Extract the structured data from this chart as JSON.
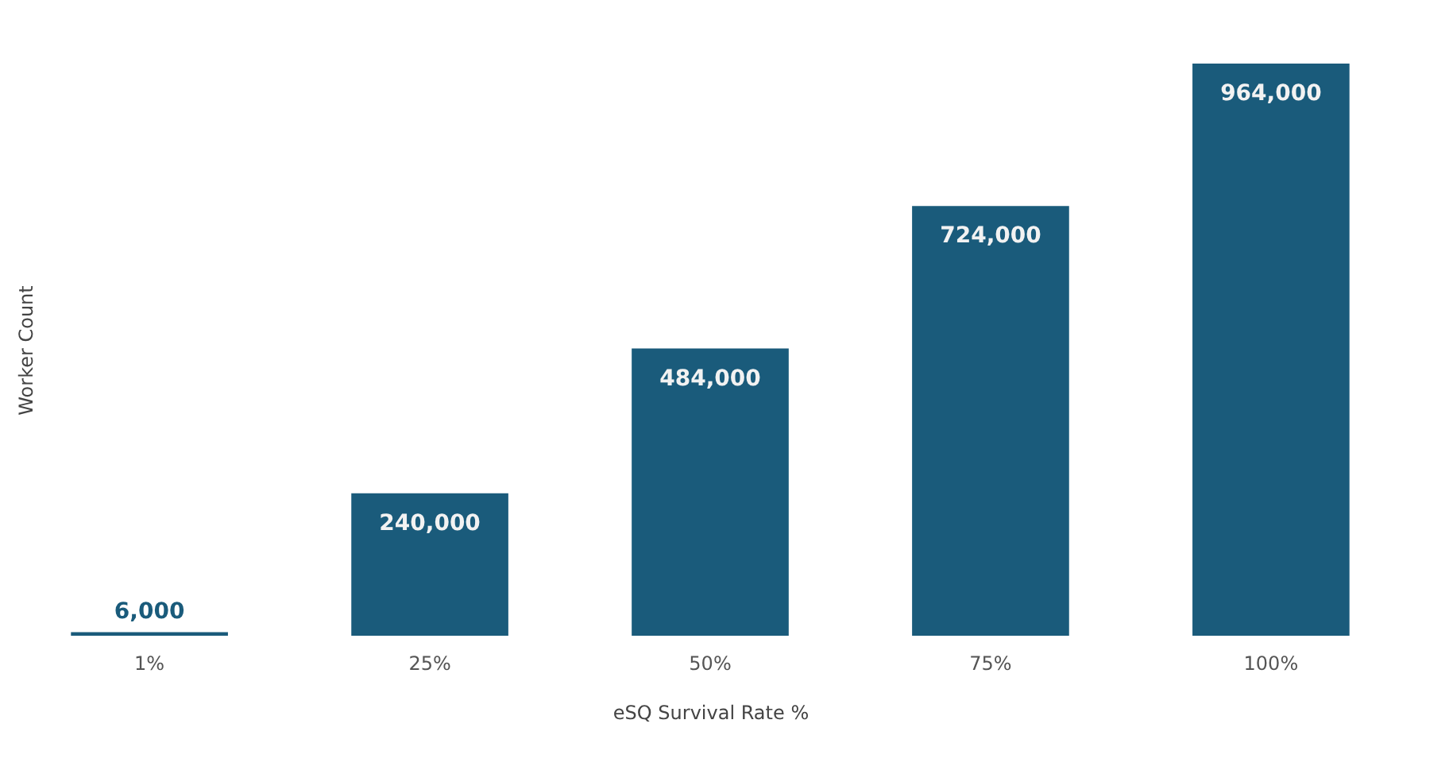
{
  "chart_data": {
    "type": "bar",
    "xlabel": "eSQ Survival Rate %",
    "ylabel": "Worker Count",
    "categories": [
      "1%",
      "25%",
      "50%",
      "75%",
      "100%"
    ],
    "values": [
      6000,
      240000,
      484000,
      724000,
      964000
    ],
    "value_labels": [
      "6,000",
      "240,000",
      "484,000",
      "724,000",
      "964,000"
    ],
    "color": "#1a5b7b",
    "grid": false
  }
}
